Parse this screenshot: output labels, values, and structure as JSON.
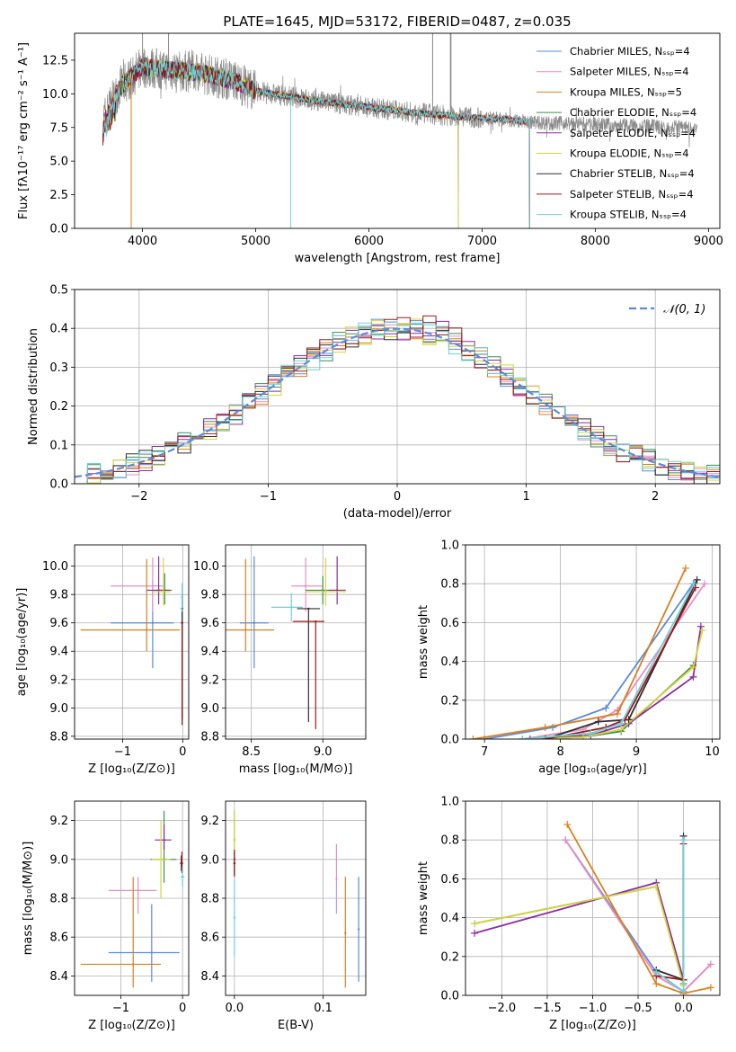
{
  "figure": {
    "title": "PLATE=1645, MJD=53172, FIBERID=0487, z=0.035"
  },
  "series_colors": {
    "Chabrier MILES": "#5b8bd6",
    "Salpeter MILES": "#e58fc0",
    "Kroupa MILES": "#d9801f",
    "Chabrier ELODIE": "#3d8f57",
    "Salpeter ELODIE": "#8c2ca0",
    "Kroupa ELODIE": "#d6d63a",
    "Chabrier STELIB": "#2f2f2f",
    "Salpeter STELIB": "#a01818",
    "Kroupa STELIB": "#6dd0d8",
    "data": "#8a8a8a"
  },
  "chart_data": [
    {
      "id": "spectrum",
      "type": "line",
      "xlabel": "wavelength [Angstrom, rest frame]",
      "ylabel": "Flux [fλ10⁻¹⁷ erg cm⁻² s⁻¹ A⁻¹]",
      "xlim": [
        3400,
        9100
      ],
      "ylim": [
        0,
        14.5
      ],
      "xticks": [
        4000,
        5000,
        6000,
        7000,
        8000,
        9000
      ],
      "yticks": [
        0.0,
        2.5,
        5.0,
        7.5,
        10.0,
        12.5
      ],
      "legend_position": "top-right",
      "legend": [
        "Chabrier MILES, Nₛₛₚ=4",
        "Salpeter MILES, Nₛₛₚ=4",
        "Kroupa MILES, Nₛₛₚ=5",
        "Chabrier ELODIE, Nₛₛₚ=4",
        "Salpeter ELODIE, Nₛₛₚ=4",
        "Kroupa ELODIE, Nₛₛₚ=4",
        "Chabrier STELIB, Nₛₛₚ=4",
        "Salpeter STELIB, Nₛₛₚ=4",
        "Kroupa STELIB, Nₛₛₚ=4"
      ],
      "continuum": {
        "x": [
          3650,
          3800,
          4000,
          4200,
          4500,
          4800,
          5000,
          5300,
          5600,
          6000,
          6400,
          6800,
          7200,
          7420
        ],
        "y": [
          8.0,
          10.5,
          12.0,
          11.8,
          11.6,
          11.0,
          10.2,
          9.8,
          9.4,
          9.0,
          8.6,
          8.3,
          8.1,
          7.9
        ]
      },
      "model_end": {
        "MILES": 7420,
        "ELODIE": 6790,
        "STELIB": 7420
      },
      "data_range": [
        3650,
        8900
      ]
    },
    {
      "id": "residuals",
      "type": "histogram",
      "xlabel": "(data-model)/error",
      "ylabel": "Normed distribution",
      "xlim": [
        -2.5,
        2.5
      ],
      "ylim": [
        0,
        0.5
      ],
      "xticks": [
        -2,
        -1,
        0,
        1,
        2
      ],
      "yticks": [
        0.0,
        0.1,
        0.2,
        0.3,
        0.4,
        0.5
      ],
      "grid": true,
      "legend": [
        "𝒩(0, 1)"
      ],
      "legend_position": "top-right",
      "reference": "gaussian(0,1)"
    },
    {
      "id": "age-vs-Z",
      "type": "scatter",
      "xlabel": "Z [log₁₀(Z/Z⊙)]",
      "ylabel": "age  [log₁₀(age/yr)]",
      "xlim": [
        -1.8,
        0.1
      ],
      "ylim": [
        8.78,
        10.15
      ],
      "xticks": [
        -1,
        0
      ],
      "yticks": [
        8.8,
        9.0,
        9.2,
        9.4,
        9.6,
        9.8,
        10.0
      ],
      "grid": true,
      "points": [
        {
          "s": "Chabrier MILES",
          "x": -0.5,
          "y": 9.6,
          "xe": [
            0.7,
            0.35
          ],
          "ye": [
            0.32,
            0.3
          ]
        },
        {
          "s": "Salpeter MILES",
          "x": -0.5,
          "y": 9.86,
          "xe": [
            0.7,
            0.2
          ],
          "ye": [
            0.18,
            0.2
          ]
        },
        {
          "s": "Kroupa MILES",
          "x": -0.6,
          "y": 9.55,
          "xe": [
            1.1,
            0.55
          ],
          "ye": [
            0.15,
            0.5
          ]
        },
        {
          "s": "Chabrier ELODIE",
          "x": -0.3,
          "y": 9.83,
          "xe": [
            0.18,
            0.12
          ],
          "ye": [
            0.1,
            0.12
          ]
        },
        {
          "s": "Salpeter ELODIE",
          "x": -0.4,
          "y": 9.83,
          "xe": [
            0.2,
            0.18
          ],
          "ye": [
            0.1,
            0.24
          ]
        },
        {
          "s": "Kroupa ELODIE",
          "x": -0.32,
          "y": 9.82,
          "xe": [
            0.17,
            0.12
          ],
          "ye": [
            0.1,
            0.24
          ]
        },
        {
          "s": "Chabrier STELIB",
          "x": -0.01,
          "y": 9.7,
          "xe": [
            0.02,
            0.02
          ],
          "ye": [
            0.78,
            0.1
          ]
        },
        {
          "s": "Salpeter STELIB",
          "x": -0.01,
          "y": 9.6,
          "xe": [
            0.02,
            0.02
          ],
          "ye": [
            0.72,
            0.0
          ]
        },
        {
          "s": "Kroupa STELIB",
          "x": -0.01,
          "y": 9.78,
          "xe": [
            0.02,
            0.02
          ],
          "ye": [
            0.1,
            0.1
          ]
        }
      ]
    },
    {
      "id": "age-vs-mass",
      "type": "scatter",
      "xlabel": "mass [log₁₀(M/M⊙)]",
      "ylabel": "",
      "xlim": [
        8.32,
        9.3
      ],
      "ylim": [
        8.78,
        10.15
      ],
      "xticks": [
        8.5,
        9.0
      ],
      "yticks": [
        8.8,
        9.0,
        9.2,
        9.4,
        9.6,
        9.8,
        10.0
      ],
      "grid": true,
      "points": [
        {
          "s": "Chabrier MILES",
          "x": 8.52,
          "y": 9.6,
          "xe": [
            0.1,
            0.1
          ],
          "ye": [
            0.32,
            0.47
          ]
        },
        {
          "s": "Salpeter MILES",
          "x": 8.88,
          "y": 9.86,
          "xe": [
            0.1,
            0.12
          ],
          "ye": [
            0.18,
            0.2
          ]
        },
        {
          "s": "Kroupa MILES",
          "x": 8.46,
          "y": 9.55,
          "xe": [
            0.14,
            0.2
          ],
          "ye": [
            0.15,
            0.5
          ]
        },
        {
          "s": "Chabrier ELODIE",
          "x": 9.0,
          "y": 9.83,
          "xe": [
            0.12,
            0.1
          ],
          "ye": [
            0.1,
            0.1
          ]
        },
        {
          "s": "Salpeter ELODIE",
          "x": 9.1,
          "y": 9.83,
          "xe": [
            0.06,
            0.06
          ],
          "ye": [
            0.1,
            0.24
          ]
        },
        {
          "s": "Kroupa ELODIE",
          "x": 9.02,
          "y": 9.82,
          "xe": [
            0.14,
            0.14
          ],
          "ye": [
            0.1,
            0.24
          ]
        },
        {
          "s": "Chabrier STELIB",
          "x": 8.9,
          "y": 9.7,
          "xe": [
            0.08,
            0.08
          ],
          "ye": [
            0.8,
            0.0
          ]
        },
        {
          "s": "Salpeter STELIB",
          "x": 8.95,
          "y": 9.61,
          "xe": [
            0.16,
            0.06
          ],
          "ye": [
            0.76,
            0.0
          ]
        },
        {
          "s": "Kroupa STELIB",
          "x": 8.78,
          "y": 9.71,
          "xe": [
            0.14,
            0.08
          ],
          "ye": [
            0.1,
            0.1
          ]
        }
      ]
    },
    {
      "id": "weight-vs-age",
      "type": "line",
      "xlabel": "age  [log₁₀(age/yr)]",
      "ylabel": "mass weight",
      "xlim": [
        6.75,
        10.1
      ],
      "ylim": [
        0,
        1.0
      ],
      "xticks": [
        7,
        8,
        9,
        10
      ],
      "yticks": [
        0.0,
        0.2,
        0.4,
        0.6,
        0.8,
        1.0
      ],
      "grid": true,
      "series": [
        {
          "s": "Chabrier MILES",
          "x": [
            7.0,
            7.9,
            8.6,
            9.75
          ],
          "y": [
            0.0,
            0.06,
            0.16,
            0.8
          ]
        },
        {
          "s": "Salpeter MILES",
          "x": [
            7.5,
            8.3,
            8.75,
            9.9
          ],
          "y": [
            0.0,
            0.05,
            0.15,
            0.8
          ]
        },
        {
          "s": "Kroupa MILES",
          "x": [
            6.85,
            7.8,
            8.75,
            9.65
          ],
          "y": [
            0.0,
            0.06,
            0.13,
            0.88
          ]
        },
        {
          "s": "Chabrier ELODIE",
          "x": [
            7.5,
            8.3,
            8.8,
            9.75
          ],
          "y": [
            0.0,
            0.01,
            0.04,
            0.38
          ]
        },
        {
          "s": "Salpeter ELODIE",
          "x": [
            7.6,
            8.4,
            8.9,
            9.75,
            9.85
          ],
          "y": [
            0.0,
            0.02,
            0.08,
            0.32,
            0.58
          ]
        },
        {
          "s": "Kroupa ELODIE",
          "x": [
            7.5,
            8.3,
            8.8,
            9.75,
            9.87
          ],
          "y": [
            0.0,
            0.01,
            0.05,
            0.37,
            0.56
          ]
        },
        {
          "s": "Chabrier STELIB",
          "x": [
            7.8,
            8.5,
            8.9,
            9.8
          ],
          "y": [
            0.0,
            0.09,
            0.1,
            0.82
          ]
        },
        {
          "s": "Salpeter STELIB",
          "x": [
            7.8,
            8.6,
            8.85,
            9.78
          ],
          "y": [
            0.0,
            0.06,
            0.1,
            0.78
          ]
        },
        {
          "s": "Kroupa STELIB",
          "x": [
            7.5,
            8.4,
            8.8,
            9.76
          ],
          "y": [
            0.0,
            0.03,
            0.08,
            0.8
          ]
        }
      ]
    },
    {
      "id": "mass-vs-Z",
      "type": "scatter",
      "xlabel": "Z [log₁₀(Z/Z⊙)]",
      "ylabel": "mass [log₁₀(M/M⊙)]",
      "xlim": [
        -1.75,
        0.1
      ],
      "ylim": [
        8.3,
        9.3
      ],
      "xticks": [
        -1,
        0
      ],
      "yticks": [
        8.4,
        8.6,
        8.8,
        9.0,
        9.2
      ],
      "grid": true,
      "points": [
        {
          "s": "Chabrier MILES",
          "x": -0.5,
          "y": 8.52,
          "xe": [
            0.7,
            0.45
          ],
          "ye": [
            0.15,
            0.25
          ]
        },
        {
          "s": "Salpeter MILES",
          "x": -0.72,
          "y": 8.84,
          "xe": [
            0.48,
            0.3
          ],
          "ye": [
            0.12,
            0.07
          ]
        },
        {
          "s": "Kroupa MILES",
          "x": -0.8,
          "y": 8.46,
          "xe": [
            0.85,
            0.45
          ],
          "ye": [
            0.12,
            0.45
          ]
        },
        {
          "s": "Chabrier ELODIE",
          "x": -0.3,
          "y": 9.0,
          "xe": [
            0.22,
            0.2
          ],
          "ye": [
            0.12,
            0.25
          ]
        },
        {
          "s": "Salpeter ELODIE",
          "x": -0.3,
          "y": 9.1,
          "xe": [
            0.15,
            0.12
          ],
          "ye": [
            0.05,
            0.08
          ]
        },
        {
          "s": "Kroupa ELODIE",
          "x": -0.35,
          "y": 9.0,
          "xe": [
            0.15,
            0.15
          ],
          "ye": [
            0.2,
            0.2
          ]
        },
        {
          "s": "Chabrier STELIB",
          "x": -0.02,
          "y": 8.98,
          "xe": [
            0.02,
            0.02
          ],
          "ye": [
            0.04,
            0.04
          ]
        },
        {
          "s": "Salpeter STELIB",
          "x": -0.01,
          "y": 8.98,
          "xe": [
            0.03,
            0.02
          ],
          "ye": [
            0.05,
            0.06
          ]
        },
        {
          "s": "Kroupa STELIB",
          "x": 0.0,
          "y": 8.91,
          "xe": [
            0.03,
            0.03
          ],
          "ye": [
            0.05,
            0.05
          ]
        }
      ]
    },
    {
      "id": "mass-vs-ebv",
      "type": "scatter",
      "xlabel": "E(B-V)",
      "ylabel": "",
      "xlim": [
        -0.01,
        0.148
      ],
      "ylim": [
        8.3,
        9.3
      ],
      "xticks": [
        0.0,
        0.1
      ],
      "yticks": [
        8.4,
        8.6,
        8.8,
        9.0,
        9.2
      ],
      "grid": true,
      "points": [
        {
          "s": "Chabrier MILES",
          "x": 0.14,
          "y": 8.64,
          "xe": [
            0,
            0
          ],
          "ye": [
            0.27,
            0.27
          ]
        },
        {
          "s": "Salpeter MILES",
          "x": 0.115,
          "y": 8.9,
          "xe": [
            0,
            0
          ],
          "ye": [
            0.18,
            0.18
          ]
        },
        {
          "s": "Kroupa MILES",
          "x": 0.125,
          "y": 8.62,
          "xe": [
            0,
            0
          ],
          "ye": [
            0.28,
            0.29
          ]
        },
        {
          "s": "Chabrier ELODIE",
          "x": 0.0,
          "y": 9.1,
          "xe": [
            0,
            0
          ],
          "ye": [
            0.15,
            0.15
          ]
        },
        {
          "s": "Salpeter ELODIE",
          "x": 0.0,
          "y": 9.0,
          "xe": [
            0,
            0
          ],
          "ye": [
            0.08,
            0.05
          ]
        },
        {
          "s": "Kroupa ELODIE",
          "x": 0.0,
          "y": 9.1,
          "xe": [
            0,
            0
          ],
          "ye": [
            0.15,
            0.15
          ]
        },
        {
          "s": "Chabrier STELIB",
          "x": 0.0,
          "y": 8.98,
          "xe": [
            0,
            0
          ],
          "ye": [
            0.06,
            0.06
          ]
        },
        {
          "s": "Salpeter STELIB",
          "x": 0.0,
          "y": 8.98,
          "xe": [
            0,
            0
          ],
          "ye": [
            0.07,
            0.07
          ]
        },
        {
          "s": "Kroupa STELIB",
          "x": 0.0,
          "y": 8.7,
          "xe": [
            0,
            0
          ],
          "ye": [
            0.2,
            0.2
          ]
        }
      ]
    },
    {
      "id": "weight-vs-Z",
      "type": "line",
      "xlabel": "Z [log₁₀(Z/Z⊙)]",
      "ylabel": "mass weight",
      "xlim": [
        -2.4,
        0.4
      ],
      "ylim": [
        0,
        1.0
      ],
      "xticks": [
        -2.0,
        -1.5,
        -1.0,
        -0.5,
        0.0
      ],
      "yticks": [
        0.0,
        0.2,
        0.4,
        0.6,
        0.8,
        1.0
      ],
      "grid": true,
      "series": [
        {
          "s": "Chabrier MILES",
          "x": [
            -1.3,
            -0.3,
            0.0,
            0.3
          ],
          "y": [
            0.8,
            0.12,
            0.02,
            0.16
          ]
        },
        {
          "s": "Salpeter MILES",
          "x": [
            -1.3,
            -0.3,
            0.0,
            0.3
          ],
          "y": [
            0.8,
            0.1,
            0.02,
            0.16
          ]
        },
        {
          "s": "Kroupa MILES",
          "x": [
            -1.28,
            -0.3,
            0.0,
            0.3
          ],
          "y": [
            0.88,
            0.06,
            0.01,
            0.04
          ]
        },
        {
          "s": "Chabrier ELODIE",
          "x": [
            -2.3,
            -0.3,
            0.0
          ],
          "y": [
            0.37,
            0.56,
            0.06
          ]
        },
        {
          "s": "Salpeter ELODIE",
          "x": [
            -2.3,
            -0.3,
            0.0
          ],
          "y": [
            0.32,
            0.58,
            0.08
          ]
        },
        {
          "s": "Kroupa ELODIE",
          "x": [
            -2.3,
            -0.3,
            0.0
          ],
          "y": [
            0.37,
            0.56,
            0.05
          ]
        },
        {
          "s": "Chabrier STELIB",
          "x": [
            -0.3,
            0.0,
            0.0
          ],
          "y": [
            0.13,
            0.08,
            0.82
          ]
        },
        {
          "s": "Salpeter STELIB",
          "x": [
            -0.3,
            0.0,
            0.0
          ],
          "y": [
            0.1,
            0.08,
            0.78
          ]
        },
        {
          "s": "Kroupa STELIB",
          "x": [
            -0.3,
            0.0,
            0.0
          ],
          "y": [
            0.12,
            0.02,
            0.8
          ]
        }
      ]
    }
  ]
}
